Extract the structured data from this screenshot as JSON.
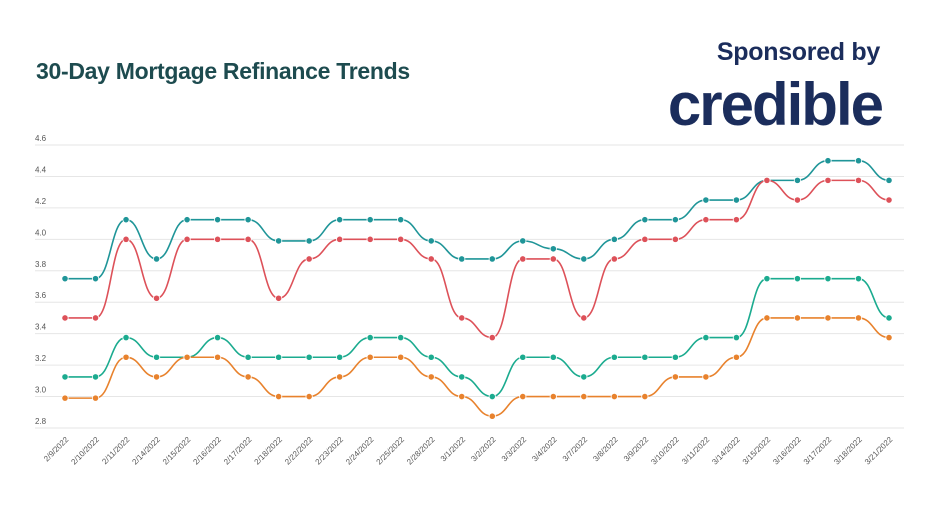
{
  "header": {
    "title": "30-Day Mortgage Refinance Trends",
    "sponsor_text": "Sponsored by",
    "sponsor_logo": "credible"
  },
  "chart_data": {
    "type": "line",
    "title": "30-Day Mortgage Refinance Trends",
    "xlabel": "",
    "ylabel": "",
    "ylim": [
      2.8,
      4.6
    ],
    "yticks": [
      "2.8",
      "3.0",
      "3.2",
      "3.4",
      "3.6",
      "3.8",
      "4.0",
      "4.2",
      "4.4",
      "4.6"
    ],
    "grid": true,
    "legend": "none",
    "categories": [
      "2/9/2022",
      "2/10/2022",
      "2/11/2022",
      "2/14/2022",
      "2/15/2022",
      "2/16/2022",
      "2/17/2022",
      "2/18/2022",
      "2/22/2022",
      "2/23/2022",
      "2/24/2022",
      "2/25/2022",
      "2/28/2022",
      "3/1/2022",
      "3/2/2022",
      "3/3/2022",
      "3/4/2022",
      "3/7/2022",
      "3/8/2022",
      "3/9/2022",
      "3/10/2022",
      "3/11/2022",
      "3/14/2022",
      "3/15/2022",
      "3/16/2022",
      "3/17/2022",
      "3/18/2022",
      "3/21/2022"
    ],
    "series": [
      {
        "color": "#1f9598",
        "values": [
          3.75,
          3.75,
          4.125,
          3.875,
          4.125,
          4.125,
          4.125,
          3.99,
          3.99,
          4.125,
          4.125,
          4.125,
          3.99,
          3.875,
          3.875,
          3.99,
          3.94,
          3.875,
          4.0,
          4.125,
          4.125,
          4.25,
          4.25,
          4.375,
          4.375,
          4.5,
          4.5,
          4.375
        ]
      },
      {
        "color": "#dd5159",
        "values": [
          3.5,
          3.5,
          4.0,
          3.625,
          4.0,
          4.0,
          4.0,
          3.625,
          3.875,
          4.0,
          4.0,
          4.0,
          3.875,
          3.5,
          3.375,
          3.875,
          3.875,
          3.5,
          3.875,
          4.0,
          4.0,
          4.125,
          4.125,
          4.375,
          4.25,
          4.375,
          4.375,
          4.25
        ]
      },
      {
        "color": "#1bab8f",
        "values": [
          3.125,
          3.125,
          3.375,
          3.25,
          3.25,
          3.375,
          3.25,
          3.25,
          3.25,
          3.25,
          3.375,
          3.375,
          3.25,
          3.125,
          3.0,
          3.25,
          3.25,
          3.125,
          3.25,
          3.25,
          3.25,
          3.375,
          3.375,
          3.75,
          3.75,
          3.75,
          3.75,
          3.5
        ]
      },
      {
        "color": "#e8822d",
        "values": [
          2.99,
          2.99,
          3.25,
          3.125,
          3.25,
          3.25,
          3.125,
          3.0,
          3.0,
          3.125,
          3.25,
          3.25,
          3.125,
          3.0,
          2.875,
          3.0,
          3.0,
          3.0,
          3.0,
          3.0,
          3.125,
          3.125,
          3.25,
          3.5,
          3.5,
          3.5,
          3.5,
          3.375
        ]
      }
    ]
  }
}
